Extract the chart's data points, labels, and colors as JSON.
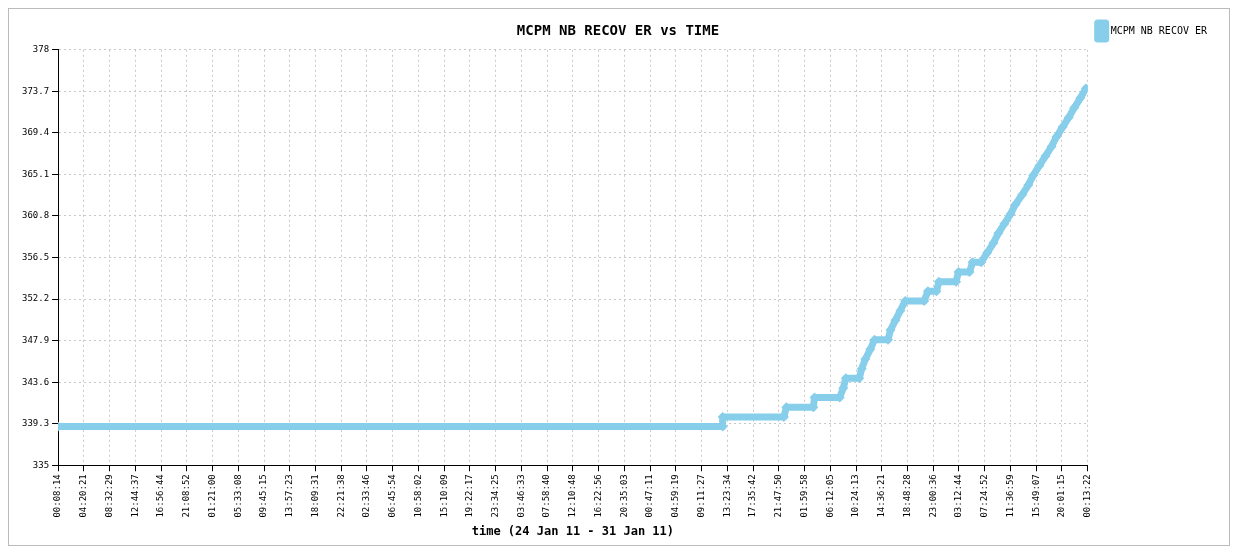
{
  "chart_data": {
    "type": "line",
    "title": "MCPM NB RECOV ER vs TIME",
    "xlabel": "time (24 Jan 11 - 31 Jan 11)",
    "series": [
      {
        "name": "MCPM NB RECOV ER",
        "color": "#87ceeb",
        "x": [
          "--01-24T00:08:14",
          "--01-28T12:38",
          "--01-28T12:38",
          "--01-28T22:38",
          "--01-28T23:02",
          "--01-29T03:26",
          "--01-29T03:38",
          "--01-29T07:44",
          "--01-29T08:20",
          "--01-29T08:44",
          "--01-29T10:56",
          "--01-29T11:20",
          "--01-29T11:56",
          "--01-29T12:44",
          "--01-29T13:26",
          "--01-29T15:38",
          "--01-29T16:02",
          "--01-29T16:50",
          "--01-29T17:38",
          "--01-29T18:26",
          "--01-29T21:32",
          "--01-29T22:08",
          "--01-29T23:32",
          "--01-29T23:56",
          "--01-30T02:44",
          "--01-30T03:08",
          "--01-30T04:56",
          "--01-30T05:26",
          "--01-30T06:50",
          "--01-30T07:50",
          "--01-30T08:50",
          "--01-30T09:38",
          "--01-30T10:38",
          "--01-30T11:38",
          "--01-30T12:26",
          "--01-30T13:32",
          "--01-30T14:32",
          "--01-30T15:20",
          "--01-30T16:20",
          "--01-30T17:20",
          "--01-30T18:20",
          "--01-30T19:08",
          "--01-30T20:08",
          "--01-30T21:08",
          "--01-30T22:02",
          "--01-30T23:02",
          "--01-30T23:56"
        ],
        "values": [
          339,
          339,
          340,
          340,
          341,
          341,
          342,
          342,
          343,
          344,
          344,
          345,
          346,
          347,
          348,
          348,
          349,
          350,
          351,
          352,
          352,
          353,
          353,
          354,
          354,
          355,
          355,
          356,
          356,
          357,
          358,
          359,
          360,
          361,
          362,
          363,
          364,
          365,
          366,
          367,
          368,
          369,
          370,
          371,
          372,
          373,
          374
        ]
      }
    ],
    "xlim": [
      "--01-24T00:08:14",
      "--01-31T00:13:22"
    ],
    "xticks": [
      {
        "value": "--01-24T00:08:14",
        "label": "00:08:14"
      },
      {
        "value": "--01-24T04:20:21",
        "label": "04:20:21"
      },
      {
        "value": "--01-24T08:32:29",
        "label": "08:32:29"
      },
      {
        "value": "--01-24T12:44:37",
        "label": "12:44:37"
      },
      {
        "value": "--01-24T16:56:44",
        "label": "16:56:44"
      },
      {
        "value": "--01-24T21:08:52",
        "label": "21:08:52"
      },
      {
        "value": "--01-25T01:21:00",
        "label": "01:21:00"
      },
      {
        "value": "--01-25T05:33:08",
        "label": "05:33:08"
      },
      {
        "value": "--01-25T09:45:15",
        "label": "09:45:15"
      },
      {
        "value": "--01-25T13:57:23",
        "label": "13:57:23"
      },
      {
        "value": "--01-25T18:09:31",
        "label": "18:09:31"
      },
      {
        "value": "--01-25T22:21:38",
        "label": "22:21:38"
      },
      {
        "value": "--01-26T02:33:46",
        "label": "02:33:46"
      },
      {
        "value": "--01-26T06:45:54",
        "label": "06:45:54"
      },
      {
        "value": "--01-26T10:58:02",
        "label": "10:58:02"
      },
      {
        "value": "--01-26T15:10:09",
        "label": "15:10:09"
      },
      {
        "value": "--01-26T19:22:17",
        "label": "19:22:17"
      },
      {
        "value": "--01-26T23:34:25",
        "label": "23:34:25"
      },
      {
        "value": "--01-27T03:46:33",
        "label": "03:46:33"
      },
      {
        "value": "--01-27T07:58:40",
        "label": "07:58:40"
      },
      {
        "value": "--01-27T12:10:48",
        "label": "12:10:48"
      },
      {
        "value": "--01-27T16:22:56",
        "label": "16:22:56"
      },
      {
        "value": "--01-27T20:35:03",
        "label": "20:35:03"
      },
      {
        "value": "--01-28T00:47:11",
        "label": "00:47:11"
      },
      {
        "value": "--01-28T04:59:19",
        "label": "04:59:19"
      },
      {
        "value": "--01-28T09:11:27",
        "label": "09:11:27"
      },
      {
        "value": "--01-28T13:23:34",
        "label": "13:23:34"
      },
      {
        "value": "--01-28T17:35:42",
        "label": "17:35:42"
      },
      {
        "value": "--01-28T21:47:50",
        "label": "21:47:50"
      },
      {
        "value": "--01-29T01:59:58",
        "label": "01:59:58"
      },
      {
        "value": "--01-29T06:12:05",
        "label": "06:12:05"
      },
      {
        "value": "--01-29T10:24:13",
        "label": "10:24:13"
      },
      {
        "value": "--01-29T14:36:21",
        "label": "14:36:21"
      },
      {
        "value": "--01-29T18:48:28",
        "label": "18:48:28"
      },
      {
        "value": "--01-29T23:00:36",
        "label": "23:00:36"
      },
      {
        "value": "--01-30T03:12:44",
        "label": "03:12:44"
      },
      {
        "value": "--01-30T07:24:52",
        "label": "07:24:52"
      },
      {
        "value": "--01-30T11:36:59",
        "label": "11:36:59"
      },
      {
        "value": "--01-30T15:49:07",
        "label": "15:49:07"
      },
      {
        "value": "--01-30T20:01:15",
        "label": "20:01:15"
      },
      {
        "value": "--01-31T00:13:22",
        "label": "00:13:22"
      }
    ],
    "ylim": [
      335,
      378
    ],
    "yticks": [
      335,
      339.3,
      343.6,
      347.9,
      352.2,
      356.5,
      360.8,
      365.1,
      369.4,
      373.7,
      378
    ],
    "grid": true,
    "legend": "top right",
    "marker": "diamond",
    "line_style": "solid"
  }
}
